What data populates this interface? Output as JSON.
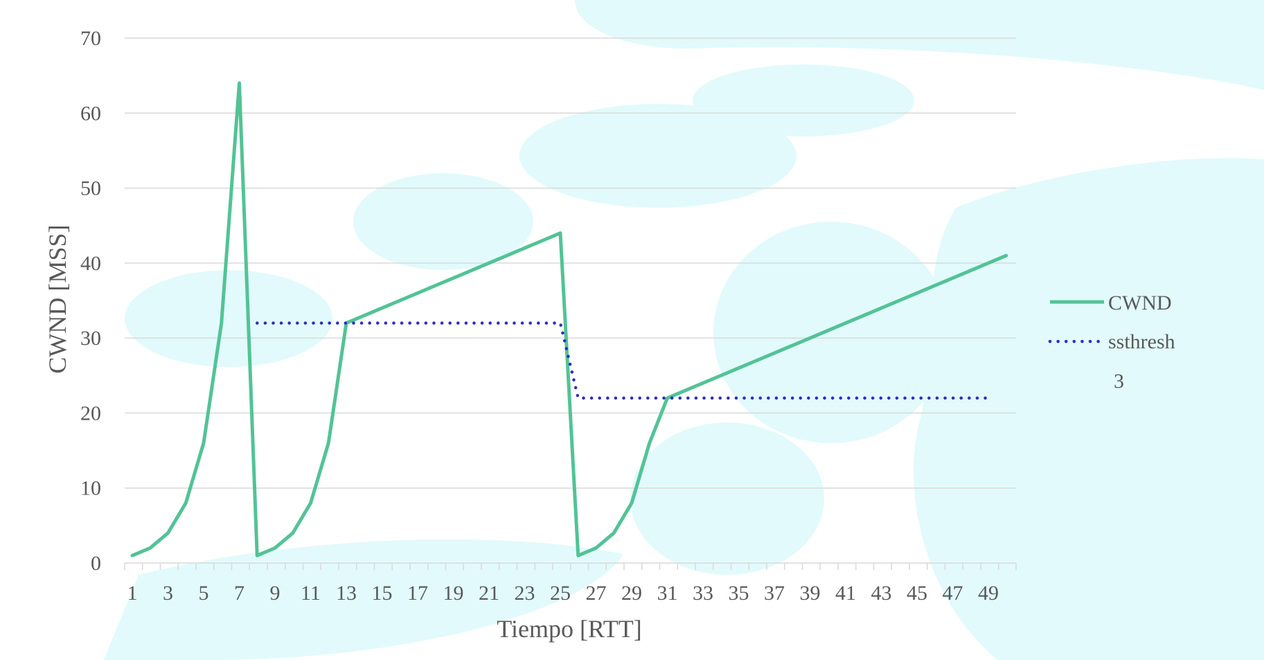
{
  "chart_data": {
    "type": "line",
    "xlabel": "Tiempo [RTT]",
    "ylabel": "CWND [MSS]",
    "ylim": [
      0,
      70
    ],
    "yticks": [
      0,
      10,
      20,
      30,
      40,
      50,
      60,
      70
    ],
    "xlim": [
      1,
      50
    ],
    "xtick_labels": [
      1,
      3,
      5,
      7,
      9,
      11,
      13,
      15,
      17,
      19,
      21,
      23,
      25,
      27,
      29,
      31,
      33,
      35,
      37,
      39,
      41,
      43,
      45,
      47,
      49
    ],
    "grid": "horizontal",
    "legend_position": "right",
    "legend_extra_label": "3",
    "series": [
      {
        "name": "CWND",
        "style": "solid",
        "color": "#52C396",
        "x": [
          1,
          2,
          3,
          4,
          5,
          6,
          7,
          8,
          9,
          10,
          11,
          12,
          13,
          14,
          15,
          16,
          17,
          18,
          19,
          20,
          21,
          22,
          23,
          24,
          25,
          26,
          27,
          28,
          29,
          30,
          31,
          32,
          33,
          34,
          35,
          36,
          37,
          38,
          39,
          40,
          41,
          42,
          43,
          44,
          45,
          46,
          47,
          48,
          49,
          50
        ],
        "values": [
          1,
          2,
          4,
          8,
          16,
          32,
          64,
          1,
          2,
          4,
          8,
          16,
          32,
          33,
          34,
          35,
          36,
          37,
          38,
          39,
          40,
          41,
          42,
          43,
          44,
          1,
          2,
          4,
          8,
          16,
          22,
          23,
          24,
          25,
          26,
          27,
          28,
          29,
          30,
          31,
          32,
          33,
          34,
          35,
          36,
          37,
          38,
          39,
          40,
          41
        ]
      },
      {
        "name": "ssthresh",
        "style": "dotted",
        "color": "#2E2EC0",
        "x": [
          8,
          9,
          10,
          11,
          12,
          13,
          14,
          15,
          16,
          17,
          18,
          19,
          20,
          21,
          22,
          23,
          24,
          25,
          26,
          27,
          28,
          29,
          30,
          31,
          32,
          33,
          34,
          35,
          36,
          37,
          38,
          39,
          40,
          41,
          42,
          43,
          44,
          45,
          46,
          47,
          48,
          49
        ],
        "values": [
          32,
          32,
          32,
          32,
          32,
          32,
          32,
          32,
          32,
          32,
          32,
          32,
          32,
          32,
          32,
          32,
          32,
          32,
          22,
          22,
          22,
          22,
          22,
          22,
          22,
          22,
          22,
          22,
          22,
          22,
          22,
          22,
          22,
          22,
          22,
          22,
          22,
          22,
          22,
          22,
          22,
          22
        ]
      }
    ]
  }
}
